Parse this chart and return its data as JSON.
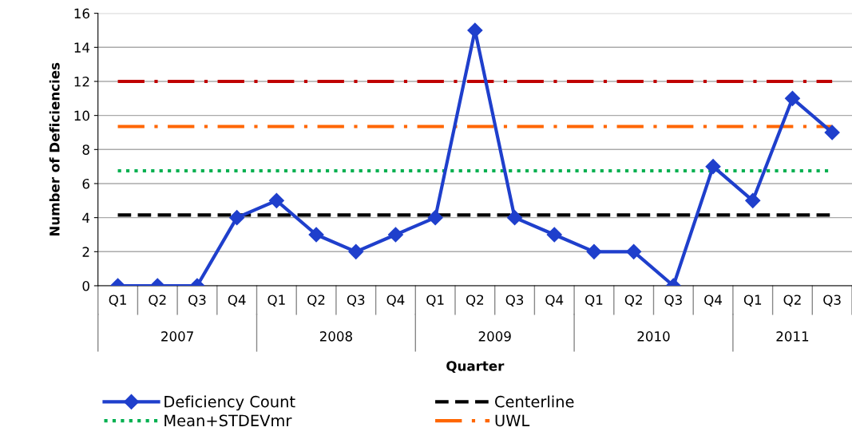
{
  "chart_data": {
    "type": "line",
    "xlabel": "Quarter",
    "ylabel": "Number of Deficiencies",
    "categories": [
      "Q1",
      "Q2",
      "Q3",
      "Q4",
      "Q1",
      "Q2",
      "Q3",
      "Q4",
      "Q1",
      "Q2",
      "Q3",
      "Q4",
      "Q1",
      "Q2",
      "Q3",
      "Q4",
      "Q1",
      "Q2",
      "Q3"
    ],
    "series": [
      {
        "name": "Deficiency Count",
        "color": "#1f3fcc",
        "values": [
          0,
          0,
          0,
          4,
          5,
          3,
          2,
          3,
          4,
          15,
          4,
          3,
          2,
          2,
          0,
          7,
          5,
          11,
          9
        ]
      }
    ],
    "ref_lines": [
      {
        "axis": "y",
        "value": 4.15,
        "label": "Centerline",
        "color": "#000000",
        "line_style": "dashed"
      },
      {
        "axis": "y",
        "value": 6.75,
        "label": "Mean+STDEVmr",
        "color": "#00b050",
        "line_style": "dotted"
      },
      {
        "axis": "y",
        "value": 9.35,
        "label": "UWL",
        "color": "#ff6600",
        "line_style": "dashdot"
      },
      {
        "axis": "y",
        "value": 12,
        "color": "#c00000",
        "line_style": "dashdot"
      }
    ],
    "annotations": [
      "2007",
      "2008",
      "2009",
      "2010",
      "2011"
    ],
    "ylim": [
      0,
      16
    ],
    "yticks": [
      0,
      2,
      4,
      6,
      8,
      10,
      12,
      14,
      16
    ],
    "grid": "y",
    "marker": "diamond",
    "legend": "bottom"
  }
}
